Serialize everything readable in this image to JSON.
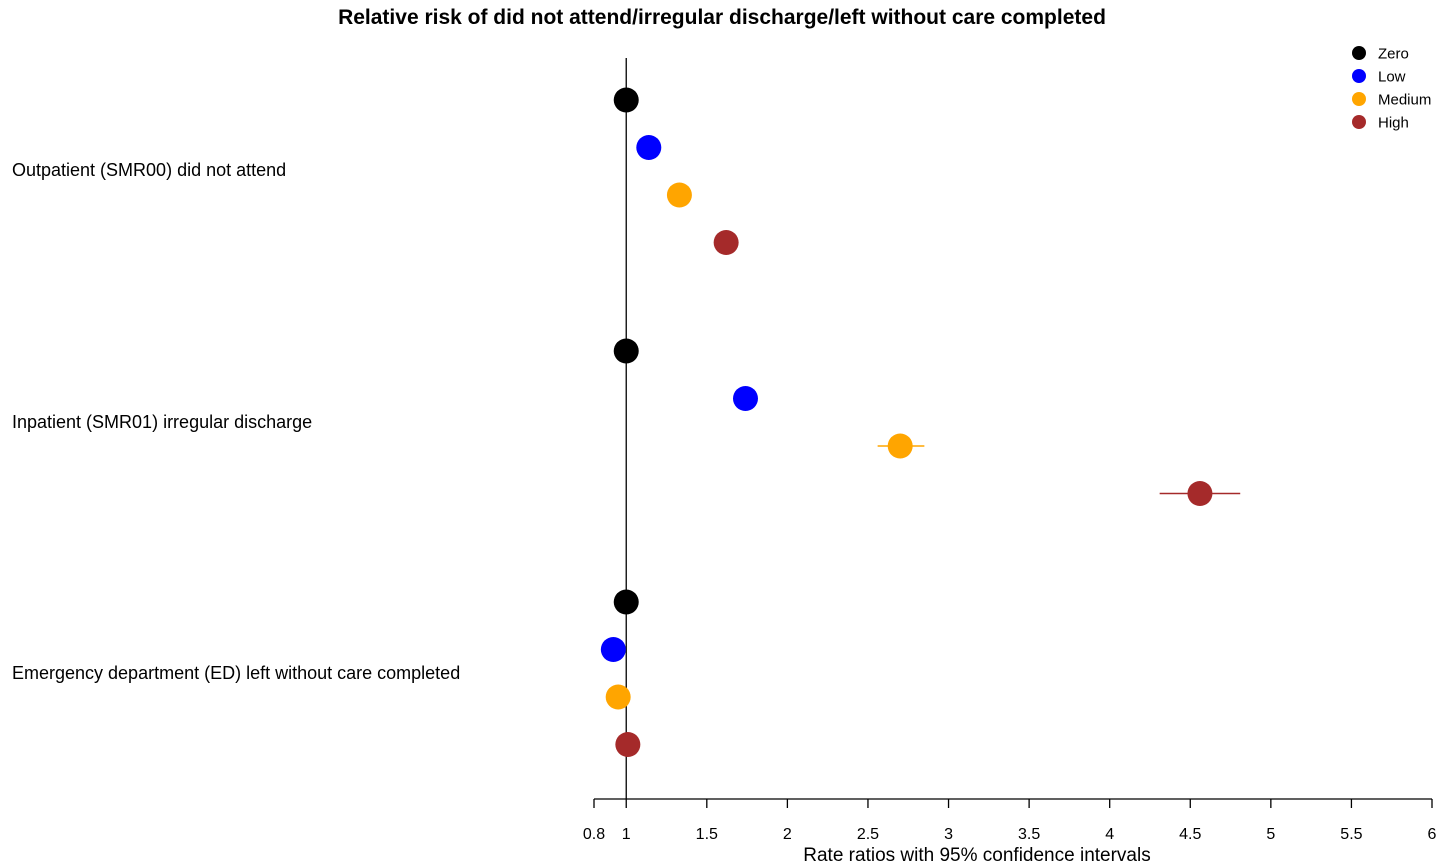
{
  "chart_data": {
    "type": "scatter",
    "title": "Relative risk of did not attend/irregular discharge/left without care completed",
    "xlabel": "Rate ratios with 95% confidence intervals",
    "xlim": [
      0.8,
      6
    ],
    "x_ticks": [
      "0.8",
      "1",
      "1.5",
      "2",
      "2.5",
      "3",
      "3.5",
      "4",
      "4.5",
      "5",
      "5.5",
      "6"
    ],
    "reference_line": 1,
    "legend_position": "top-right",
    "groups": [
      "Outpatient (SMR00) did not attend",
      "Inpatient (SMR01) irregular discharge",
      "Emergency department (ED) left without care completed"
    ],
    "series": [
      {
        "name": "Zero",
        "color": "#000000",
        "values": [
          1.0,
          1.0,
          1.0
        ],
        "ci_low": [
          1.0,
          1.0,
          1.0
        ],
        "ci_high": [
          1.0,
          1.0,
          1.0
        ]
      },
      {
        "name": "Low",
        "color": "#0000FF",
        "values": [
          1.14,
          1.74,
          0.92
        ],
        "ci_low": [
          1.13,
          1.71,
          0.91
        ],
        "ci_high": [
          1.15,
          1.77,
          0.93
        ]
      },
      {
        "name": "Medium",
        "color": "#FFA500",
        "values": [
          1.33,
          2.7,
          0.95
        ],
        "ci_low": [
          1.32,
          2.56,
          0.94
        ],
        "ci_high": [
          1.34,
          2.85,
          0.96
        ]
      },
      {
        "name": "High",
        "color": "#A52A2A",
        "values": [
          1.62,
          4.56,
          1.01
        ],
        "ci_low": [
          1.6,
          4.31,
          1.0
        ],
        "ci_high": [
          1.64,
          4.81,
          1.02
        ]
      }
    ]
  }
}
